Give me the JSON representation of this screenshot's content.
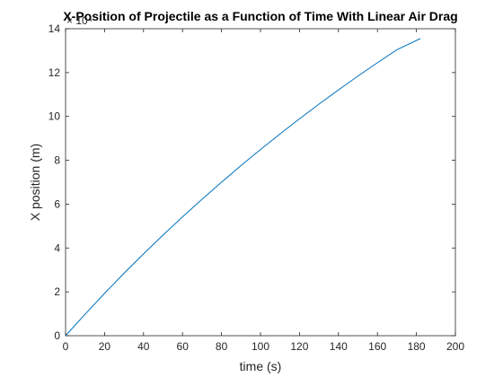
{
  "chart_data": {
    "type": "line",
    "title": "X-Position of Projectile as a Function of Time With Linear Air Drag",
    "xlabel": "time (s)",
    "ylabel": "X position (m)",
    "xlim": [
      0,
      200
    ],
    "ylim": [
      0,
      14
    ],
    "y_exponent_label": "× 10⁴",
    "xticks": [
      "0",
      "20",
      "40",
      "60",
      "80",
      "100",
      "120",
      "140",
      "160",
      "180",
      "200"
    ],
    "yticks": [
      "0",
      "2",
      "4",
      "6",
      "8",
      "10",
      "12",
      "14"
    ],
    "grid": false,
    "series": [
      {
        "name": "",
        "color": "#0072BD",
        "x": [
          0,
          10,
          20,
          30,
          40,
          50,
          60,
          70,
          80,
          90,
          100,
          110,
          120,
          130,
          140,
          150,
          160,
          170,
          182
        ],
        "y": [
          0,
          0.98,
          1.93,
          2.85,
          3.73,
          4.59,
          5.42,
          6.22,
          7.0,
          7.76,
          8.49,
          9.2,
          9.89,
          10.56,
          11.21,
          11.84,
          12.45,
          13.04,
          13.55
        ]
      }
    ]
  }
}
